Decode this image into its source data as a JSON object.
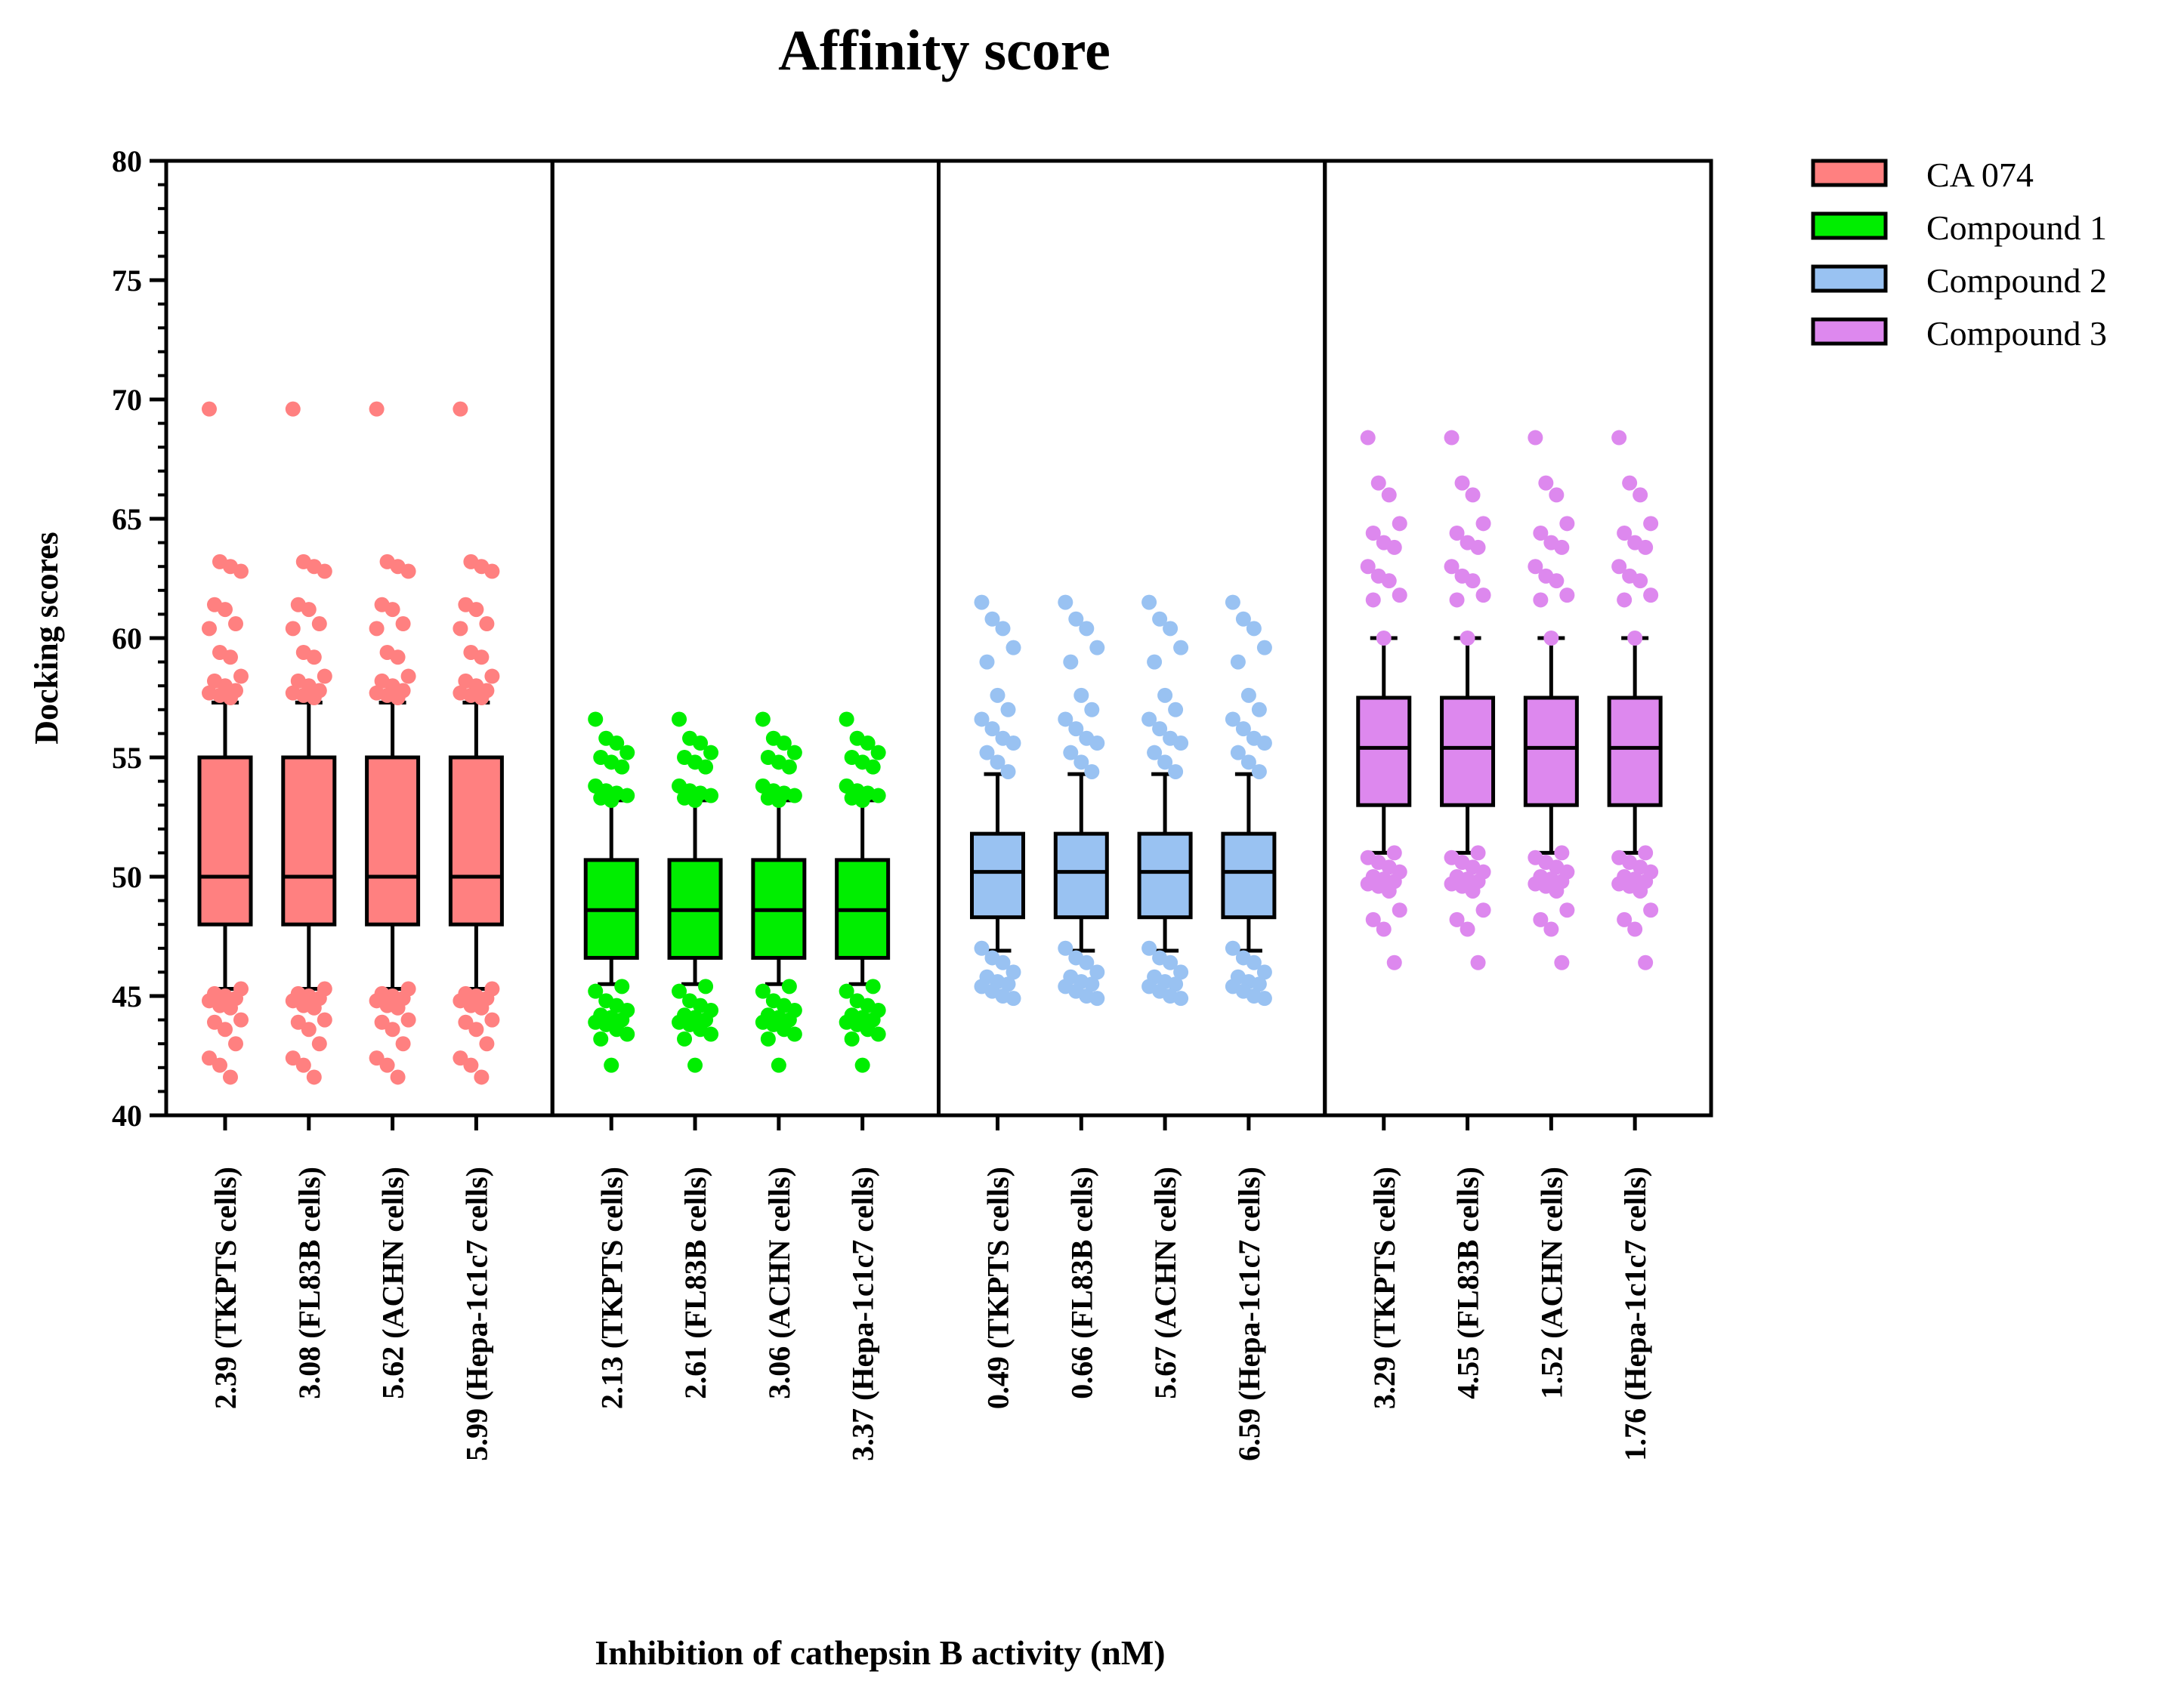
{
  "chart_data": {
    "type": "box",
    "title": "Affinity score",
    "ylabel": "Docking scores",
    "xlabel": "Inhibition of cathepsin B activity (nM)",
    "ylim": [
      40,
      80
    ],
    "yticks": [
      40,
      45,
      50,
      55,
      60,
      65,
      70,
      75,
      80
    ],
    "yminor_step": 1,
    "legend_position": "top-right outside",
    "groups": [
      {
        "name": "CA 074",
        "color": "#FF8080",
        "categories": [
          "2.39 (TKPTS cells)",
          "3.08 (FL83B cells)",
          "5.62 (ACHN cells)",
          "5.99 (Hepa-1c1c7 cells)"
        ],
        "box": {
          "whisker_low": 45.3,
          "q1": 48,
          "median": 50,
          "q3": 55,
          "whisker_high": 57.3
        },
        "outliers": [
          69.6,
          63.2,
          63.0,
          62.8,
          61.4,
          61.2,
          60.6,
          60.4,
          59.4,
          59.2,
          58.4,
          58.2,
          58.0,
          57.8,
          57.7,
          57.6,
          57.5,
          45.3,
          45.1,
          45.0,
          44.9,
          44.8,
          44.6,
          44.5,
          44.0,
          43.9,
          43.6,
          43.0,
          42.4,
          42.1,
          41.6
        ]
      },
      {
        "name": "Compound 1",
        "color": "#00EE00",
        "categories": [
          "2.13 (TKPTS cells)",
          "2.61 (FL83B cells)",
          "3.06 (ACHN cells)",
          "3.37 (Hepa-1c1c7 cells)"
        ],
        "box": {
          "whisker_low": 45.5,
          "q1": 46.6,
          "median": 48.6,
          "q3": 50.7,
          "whisker_high": 53.2
        },
        "outliers": [
          56.6,
          55.8,
          55.6,
          55.2,
          55.0,
          54.8,
          54.6,
          53.8,
          53.6,
          53.5,
          53.4,
          53.3,
          53.2,
          45.4,
          45.2,
          44.8,
          44.6,
          44.4,
          44.2,
          44.1,
          44.0,
          43.9,
          43.8,
          43.6,
          43.4,
          43.2,
          42.1
        ]
      },
      {
        "name": "Compound 2",
        "color": "#99C2F2",
        "categories": [
          "0.49 (TKPTS cells)",
          "0.66 (FL83B cells)",
          "5.67 (ACHN cells)",
          "6.59 (Hepa-1c1c7 cells)"
        ],
        "box": {
          "whisker_low": 46.9,
          "q1": 48.3,
          "median": 50.2,
          "q3": 51.8,
          "whisker_high": 54.3
        },
        "outliers": [
          61.5,
          60.8,
          60.4,
          59.6,
          59.0,
          57.6,
          57.0,
          56.6,
          56.2,
          55.8,
          55.6,
          55.2,
          54.8,
          54.4,
          47.0,
          46.6,
          46.4,
          46.0,
          45.8,
          45.6,
          45.5,
          45.4,
          45.2,
          45.0,
          44.9
        ]
      },
      {
        "name": "Compound 3",
        "color": "#DD88EE",
        "categories": [
          "3.29 (TKPTS cells)",
          "4.55 (FL83B cells)",
          "1.52 (ACHN cells)",
          "1.76 (Hepa-1c1c7 cells)"
        ],
        "box": {
          "whisker_low": 51.0,
          "q1": 53.0,
          "median": 55.4,
          "q3": 57.5,
          "whisker_high": 60.0
        },
        "outliers": [
          68.4,
          66.5,
          66.0,
          64.8,
          64.4,
          64.0,
          63.8,
          63.0,
          62.6,
          62.4,
          61.8,
          61.6,
          60.0,
          51.0,
          50.8,
          50.6,
          50.4,
          50.2,
          50.0,
          49.9,
          49.8,
          49.7,
          49.6,
          49.4,
          48.6,
          48.2,
          47.8,
          46.4
        ]
      }
    ]
  }
}
